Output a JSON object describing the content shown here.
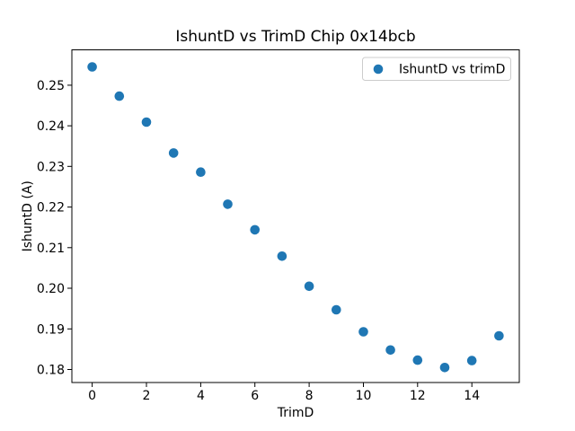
{
  "window": {
    "background": "#ffffff"
  },
  "chart_data": {
    "type": "scatter",
    "title": "IshuntD vs TrimD Chip 0x14bcb",
    "xlabel": "TrimD",
    "ylabel": "IshuntD (A)",
    "legend": {
      "label": "IshuntD vs trimD",
      "position": "upper right"
    },
    "marker": "circle",
    "marker_color": "#1f77b4",
    "series": [
      {
        "name": "IshuntD vs trimD",
        "color": "#1f77b4",
        "x": [
          0,
          1,
          2,
          3,
          4,
          5,
          6,
          7,
          8,
          9,
          10,
          11,
          12,
          13,
          14,
          15
        ],
        "y": [
          0.2545,
          0.2473,
          0.2409,
          0.2333,
          0.2286,
          0.2207,
          0.2144,
          0.2079,
          0.2005,
          0.1947,
          0.1893,
          0.1848,
          0.1823,
          0.1805,
          0.1822,
          0.1883
        ]
      }
    ],
    "xlim": [
      -0.75,
      15.75
    ],
    "ylim": [
      0.1768,
      0.2587
    ],
    "xticks": [
      0,
      2,
      4,
      6,
      8,
      10,
      12,
      14
    ],
    "yticks": [
      0.18,
      0.19,
      0.2,
      0.21,
      0.22,
      0.23,
      0.24,
      0.25
    ],
    "ytick_decimals": 2,
    "grid": false
  }
}
